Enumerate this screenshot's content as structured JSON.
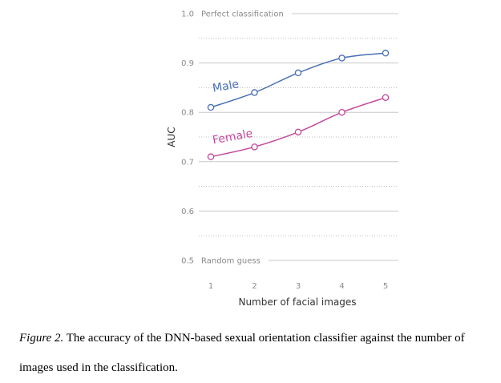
{
  "chart_data": {
    "type": "line",
    "x": [
      1,
      2,
      3,
      4,
      5
    ],
    "xlabel": "Number of facial images",
    "ylabel": "AUC",
    "ylim": [
      0.5,
      1.0
    ],
    "yticks": [
      "0.5",
      "0.6",
      "0.7",
      "0.8",
      "0.9",
      "1.0"
    ],
    "xticks": [
      "1",
      "2",
      "3",
      "4",
      "5"
    ],
    "grid": true,
    "reference_lines": [
      {
        "value": 1.0,
        "label": "Perfect classification"
      },
      {
        "value": 0.5,
        "label": "Random guess"
      }
    ],
    "series": [
      {
        "name": "Male",
        "color": "#4a6fb5",
        "values": [
          0.81,
          0.84,
          0.88,
          0.91,
          0.92
        ]
      },
      {
        "name": "Female",
        "color": "#c2499b",
        "values": [
          0.71,
          0.73,
          0.76,
          0.8,
          0.83
        ]
      }
    ]
  },
  "caption": {
    "figure_label": "Figure 2.",
    "text": " The accuracy of the DNN-based sexual orientation classifier against the number of images used in the classification."
  }
}
